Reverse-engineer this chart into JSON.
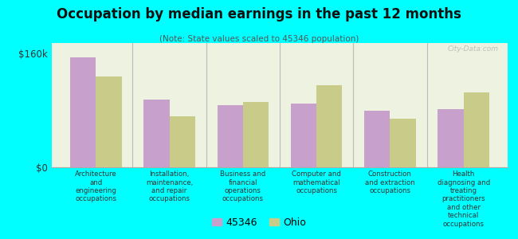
{
  "title": "Occupation by median earnings in the past 12 months",
  "subtitle": "(Note: State values scaled to 45346 population)",
  "background_color": "#00ffff",
  "plot_bg_color": "#eef2e0",
  "categories": [
    "Architecture\nand\nengineering\noccupations",
    "Installation,\nmaintenance,\nand repair\noccupations",
    "Business and\nfinancial\noperations\noccupations",
    "Computer and\nmathematical\noccupations",
    "Construction\nand extraction\noccupations",
    "Health\ndiagnosing and\ntreating\npractitioners\nand other\ntechnical\noccupations"
  ],
  "values_45346": [
    155000,
    95000,
    88000,
    90000,
    80000,
    82000
  ],
  "values_ohio": [
    128000,
    72000,
    92000,
    115000,
    68000,
    105000
  ],
  "color_45346": "#c8a0cc",
  "color_ohio": "#c8cc88",
  "ylim": [
    0,
    175000
  ],
  "yticks": [
    0,
    160000
  ],
  "ytick_labels": [
    "$0",
    "$160k"
  ],
  "legend_labels": [
    "45346",
    "Ohio"
  ],
  "watermark": "City-Data.com"
}
